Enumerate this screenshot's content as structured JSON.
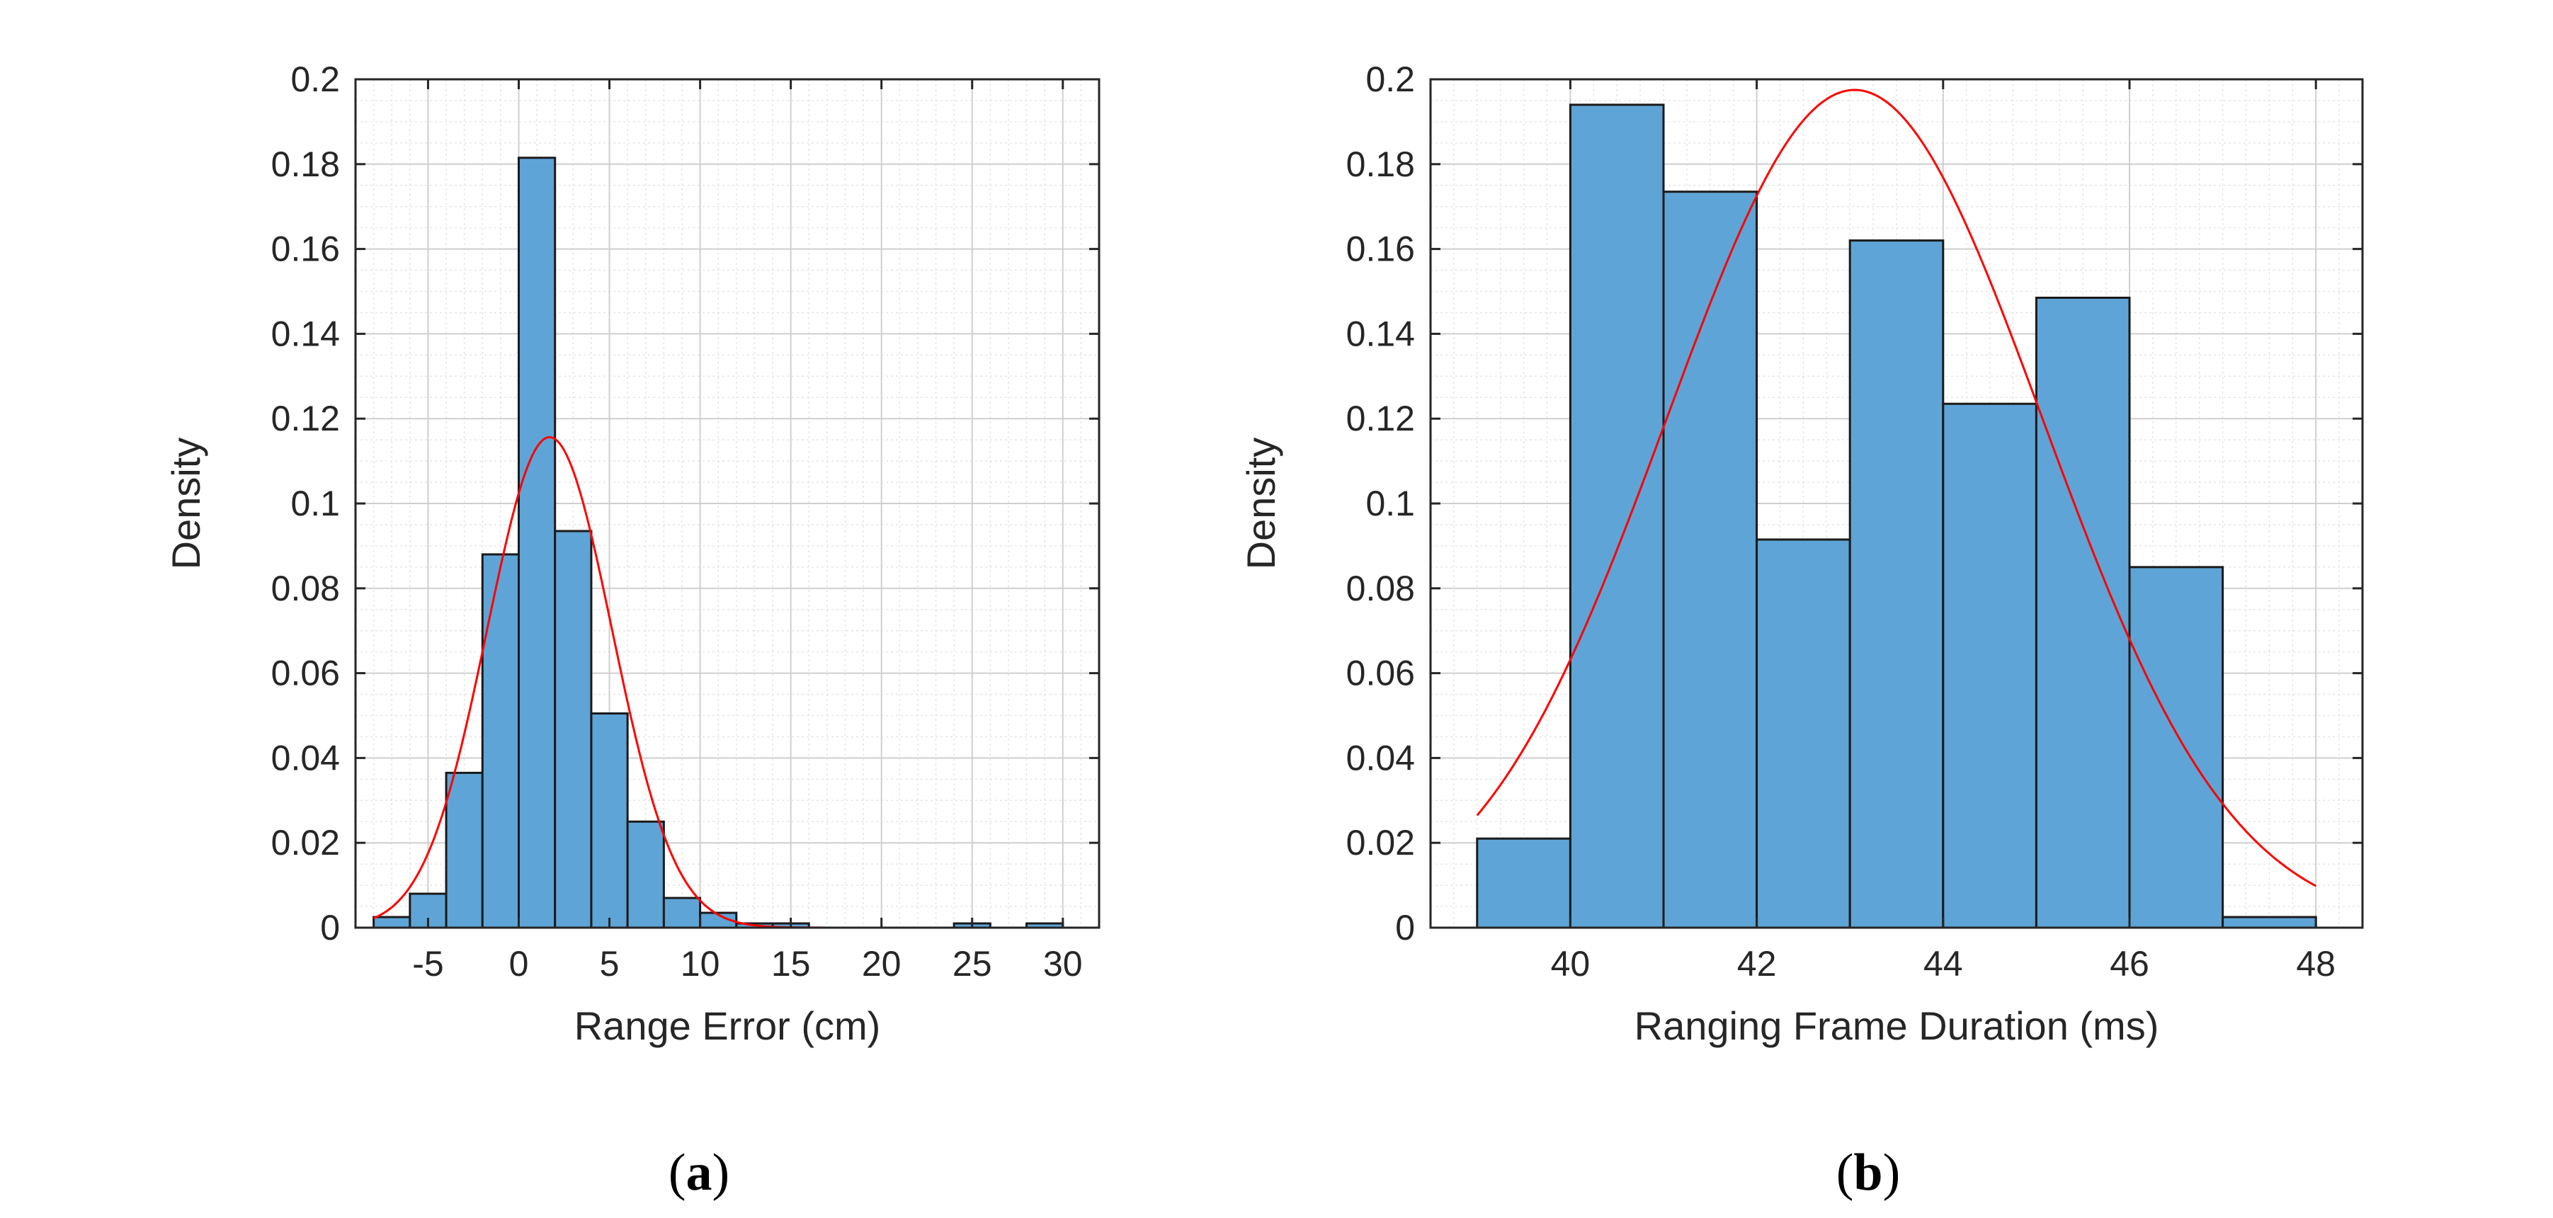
{
  "chart_data": [
    {
      "type": "bar",
      "subtype": "histogram",
      "caption": {
        "open": "(",
        "letter": "a",
        "close": ")"
      },
      "xlabel": "Range Error (cm)",
      "ylabel": "Density",
      "xlim": [
        -9,
        32
      ],
      "ylim": [
        0,
        0.2
      ],
      "xticks": [
        -5,
        0,
        5,
        10,
        15,
        20,
        25,
        30
      ],
      "yticks": [
        0,
        0.02,
        0.04,
        0.06,
        0.08,
        0.1,
        0.12,
        0.14,
        0.16,
        0.18,
        0.2
      ],
      "xtick_labels": [
        "-5",
        "0",
        "5",
        "10",
        "15",
        "20",
        "25",
        "30"
      ],
      "ytick_labels": [
        "0",
        "0.02",
        "0.04",
        "0.06",
        "0.08",
        "0.1",
        "0.12",
        "0.14",
        "0.16",
        "0.18",
        "0.2"
      ],
      "grid": true,
      "minor_grid": true,
      "bin_edges": [
        -8,
        -6,
        -4,
        -2,
        0,
        2,
        4,
        6,
        8,
        10,
        12,
        14,
        16,
        18,
        20,
        22,
        24,
        26,
        28,
        30
      ],
      "values": [
        0.0025,
        0.008,
        0.0365,
        0.088,
        0.1815,
        0.0935,
        0.0505,
        0.025,
        0.007,
        0.0035,
        0.001,
        0.001,
        0,
        0,
        0,
        0,
        0.001,
        0,
        0.001
      ],
      "fit": {
        "type": "normal",
        "mean": 1.7,
        "std": 3.45,
        "range": [
          -8,
          30
        ]
      },
      "bar_color": "#5fa4d6",
      "fit_color": "#ff0000"
    },
    {
      "type": "bar",
      "subtype": "histogram",
      "caption": {
        "open": "(",
        "letter": "b",
        "close": ")"
      },
      "xlabel": "Ranging Frame Duration (ms)",
      "ylabel": "Density",
      "xlim": [
        38.5,
        48.5
      ],
      "ylim": [
        0,
        0.2
      ],
      "xticks": [
        40,
        42,
        44,
        46,
        48
      ],
      "yticks": [
        0,
        0.02,
        0.04,
        0.06,
        0.08,
        0.1,
        0.12,
        0.14,
        0.16,
        0.18,
        0.2
      ],
      "xtick_labels": [
        "40",
        "42",
        "44",
        "46",
        "48"
      ],
      "ytick_labels": [
        "0",
        "0.02",
        "0.04",
        "0.06",
        "0.08",
        "0.1",
        "0.12",
        "0.14",
        "0.16",
        "0.18",
        "0.2"
      ],
      "grid": true,
      "minor_grid": true,
      "bin_edges": [
        39,
        40,
        41,
        42,
        43,
        44,
        45,
        46,
        47,
        48
      ],
      "values": [
        0.021,
        0.194,
        0.1735,
        0.0915,
        0.162,
        0.1235,
        0.1485,
        0.085,
        0.0025
      ],
      "fit": {
        "type": "normal",
        "mean": 43.05,
        "std": 2.02,
        "range": [
          39,
          48
        ]
      },
      "bar_color": "#5fa4d6",
      "fit_color": "#ff0000"
    }
  ]
}
